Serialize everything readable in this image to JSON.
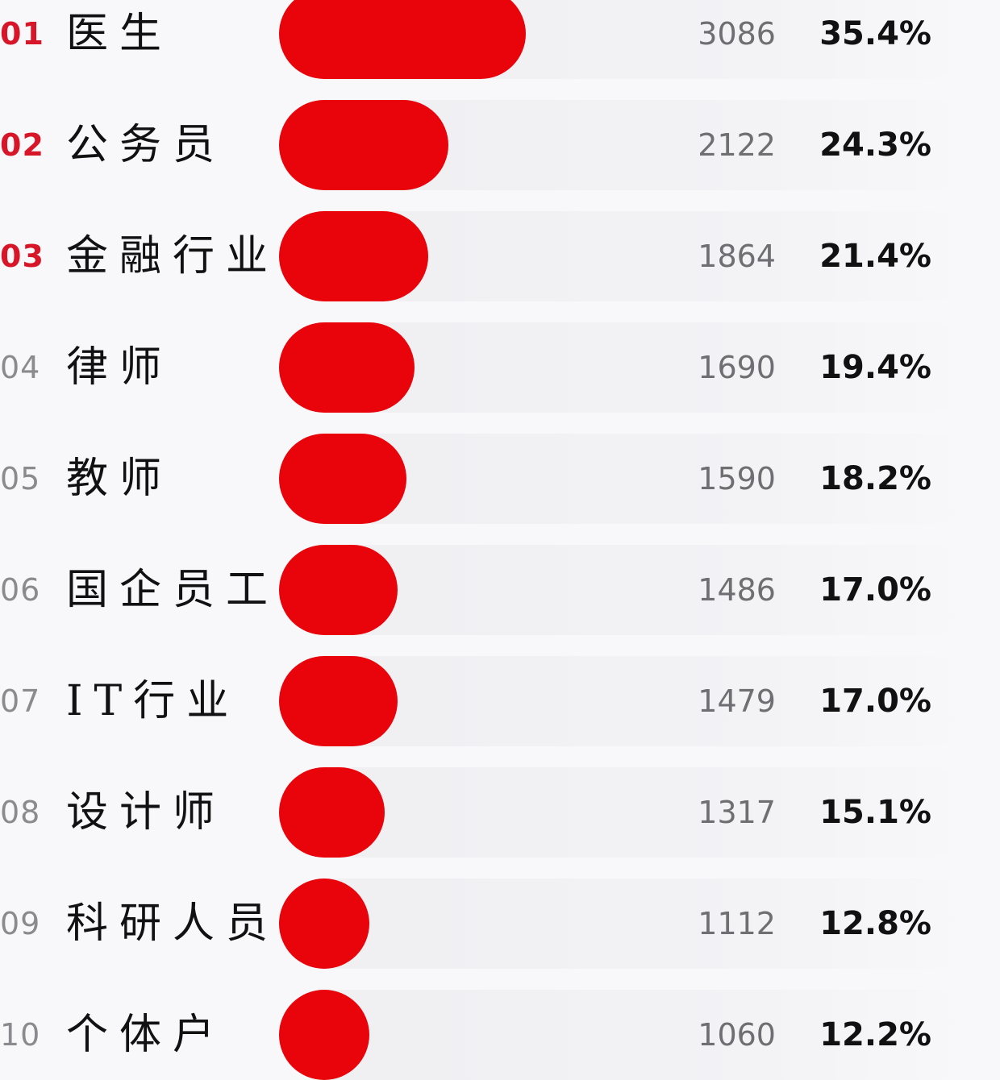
{
  "chart_data": {
    "type": "bar",
    "orientation": "horizontal",
    "bar_color": "#e8040a",
    "rank_highlight_color": "#d8162a",
    "grid": false,
    "ranks": [
      "01",
      "02",
      "03",
      "04",
      "05",
      "06",
      "07",
      "08",
      "09",
      "10"
    ],
    "categories": [
      "医生",
      "公务员",
      "金融行业",
      "律师",
      "教师",
      "国企员工",
      "IT行业",
      "设计师",
      "科研人员",
      "个体户"
    ],
    "values": [
      3086,
      2122,
      1864,
      1690,
      1590,
      1486,
      1479,
      1317,
      1112,
      1060
    ],
    "percents": [
      "35.4%",
      "24.3%",
      "21.4%",
      "19.4%",
      "18.2%",
      "17.0%",
      "17.0%",
      "15.1%",
      "12.8%",
      "12.2%"
    ]
  }
}
